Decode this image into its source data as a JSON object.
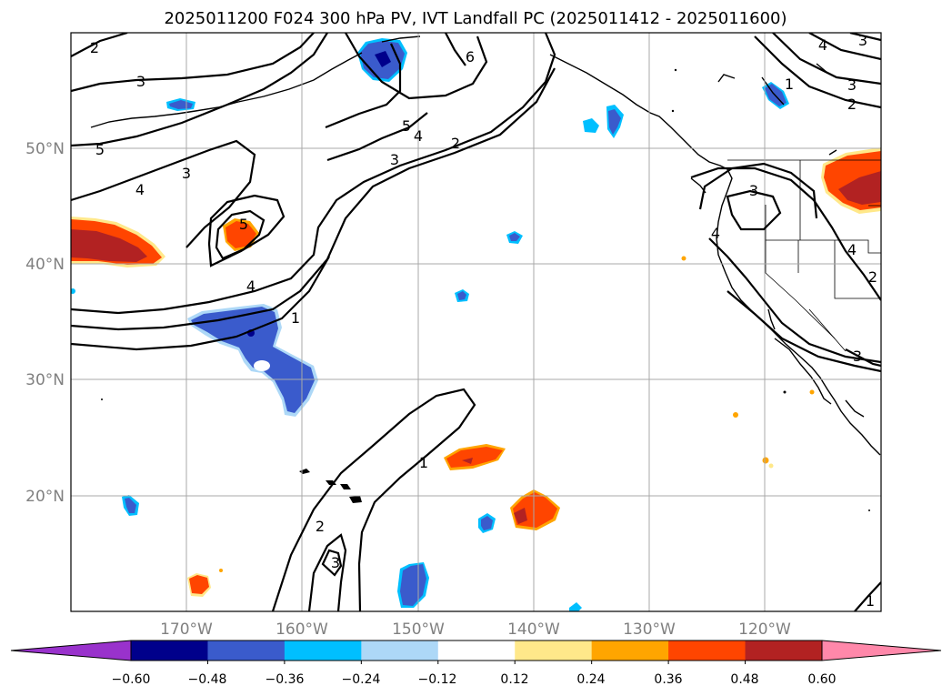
{
  "title": "2025011200 F024 300 hPa PV, IVT Landfall PC (2025011412 - 2025011600)",
  "map": {
    "extent": {
      "lon": [
        -180,
        -110
      ],
      "lat": [
        10,
        60
      ]
    },
    "lat_labels": [
      "50°N",
      "40°N",
      "30°N",
      "20°N"
    ],
    "lon_labels": [
      "170°W",
      "160°W",
      "150°W",
      "140°W",
      "130°W",
      "120°W"
    ],
    "gridlines": true,
    "contour_labels": [
      "2",
      "3",
      "5",
      "4",
      "3",
      "6",
      "5",
      "4",
      "3",
      "2",
      "1",
      "4",
      "3",
      "2",
      "3",
      "5",
      "4",
      "3",
      "1",
      "4",
      "4",
      "3",
      "1",
      "2",
      "3",
      "1",
      "2"
    ]
  },
  "colorbar": {
    "ticks": [
      "−0.60",
      "−0.48",
      "−0.36",
      "−0.24",
      "−0.12",
      "0.12",
      "0.24",
      "0.36",
      "0.48",
      "0.60"
    ],
    "colors": [
      "#9932cc",
      "#00008b",
      "#3a5bcc",
      "#00bfff",
      "#add8f7",
      "#ffffff",
      "#ffe88a",
      "#ffa500",
      "#ff4500",
      "#b22222",
      "#ff88aa"
    ],
    "extend": "both"
  }
}
